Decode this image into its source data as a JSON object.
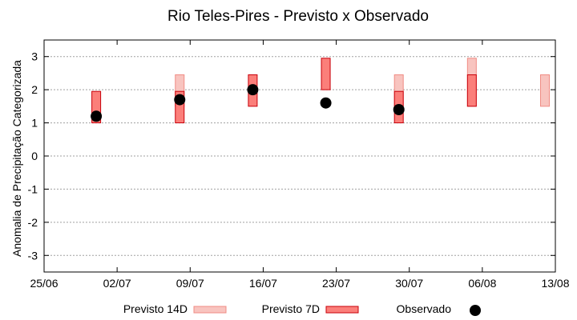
{
  "chart_data": {
    "type": "bar",
    "title": "Rio Teles-Pires - Previsto x Observado",
    "xlabel": "",
    "ylabel": "Anomalia de Precipitação Categorizada",
    "ylim": [
      -3.5,
      3.5
    ],
    "yticks": [
      "-3",
      "-2",
      "-1",
      "0",
      "1",
      "2",
      "3"
    ],
    "xlim": [
      "25/06",
      "13/08"
    ],
    "xticks": [
      "25/06",
      "02/07",
      "09/07",
      "16/07",
      "23/07",
      "30/07",
      "06/08",
      "13/08"
    ],
    "grid": true,
    "legend_position": "bottom",
    "series": [
      {
        "name": "Previsto 14D",
        "kind": "range-bar",
        "fill": "#f8c4bf",
        "stroke": "#f08c84",
        "bars": [
          {
            "x": "08/07",
            "low": 1.5,
            "high": 2.45
          },
          {
            "x": "29/07",
            "low": 1.5,
            "high": 2.45
          },
          {
            "x": "05/08",
            "low": 1.5,
            "high": 2.95
          },
          {
            "x": "12/08",
            "low": 1.5,
            "high": 2.45
          }
        ]
      },
      {
        "name": "Previsto 7D",
        "kind": "range-bar",
        "fill": "#fb7f7a",
        "stroke": "#c8000a",
        "bars": [
          {
            "x": "30/06",
            "low": 1.0,
            "high": 1.95
          },
          {
            "x": "08/07",
            "low": 1.0,
            "high": 1.95
          },
          {
            "x": "15/07",
            "low": 1.5,
            "high": 2.45
          },
          {
            "x": "22/07",
            "low": 2.0,
            "high": 2.95
          },
          {
            "x": "29/07",
            "low": 1.0,
            "high": 1.95
          },
          {
            "x": "05/08",
            "low": 1.5,
            "high": 2.45
          }
        ]
      },
      {
        "name": "Observado",
        "kind": "point",
        "color": "#000000",
        "points": [
          {
            "x": "30/06",
            "y": 1.2
          },
          {
            "x": "08/07",
            "y": 1.7
          },
          {
            "x": "15/07",
            "y": 2.0
          },
          {
            "x": "22/07",
            "y": 1.6
          },
          {
            "x": "29/07",
            "y": 1.4
          }
        ]
      }
    ]
  }
}
